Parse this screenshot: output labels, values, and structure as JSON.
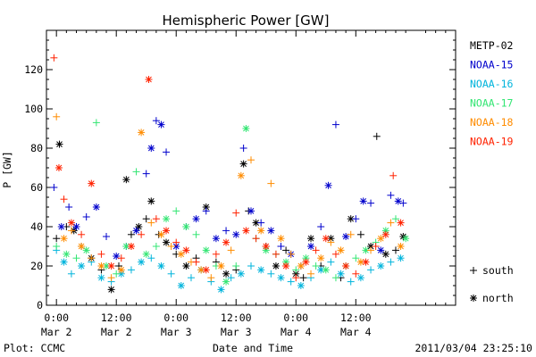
{
  "chart_data": {
    "type": "scatter",
    "title": "Hemispheric Power [GW]",
    "ylabel": "P [GW]",
    "xlabel": "Date and Time",
    "ylim": [
      0,
      140
    ],
    "xlim_hours": [
      -2,
      80
    ],
    "yticks": [
      0,
      20,
      40,
      60,
      80,
      100,
      120
    ],
    "xticks": [
      {
        "hour": 0,
        "time": "0:00",
        "date": "Mar 2"
      },
      {
        "hour": 12,
        "time": "12:00",
        "date": "Mar 2"
      },
      {
        "hour": 24,
        "time": "0:00",
        "date": "Mar 3"
      },
      {
        "hour": 36,
        "time": "12:00",
        "date": "Mar 3"
      },
      {
        "hour": 48,
        "time": "0:00",
        "date": "Mar 4"
      },
      {
        "hour": 60,
        "time": "12:00",
        "date": "Mar 4"
      }
    ],
    "x_unit": "hours from 2011-03-02 00:00",
    "grid": false,
    "legend_position": "right",
    "marker_legend": [
      {
        "symbol": "+",
        "label": "south"
      },
      {
        "symbol": "*",
        "label": "north"
      }
    ],
    "series": [
      {
        "name": "METP-02",
        "color": "#000000",
        "points": [
          [
            0,
            34
          ],
          [
            0.6,
            82
          ],
          [
            2,
            40
          ],
          [
            3.5,
            38
          ],
          [
            5,
            30
          ],
          [
            7,
            24
          ],
          [
            9,
            18
          ],
          [
            11,
            8
          ],
          [
            12.5,
            20
          ],
          [
            14,
            64
          ],
          [
            15,
            36
          ],
          [
            16.5,
            40
          ],
          [
            18,
            44
          ],
          [
            19,
            53
          ],
          [
            20.5,
            36
          ],
          [
            22,
            32
          ],
          [
            24,
            26
          ],
          [
            26,
            20
          ],
          [
            28,
            24
          ],
          [
            30,
            50
          ],
          [
            32,
            22
          ],
          [
            34,
            16
          ],
          [
            36,
            18
          ],
          [
            37.5,
            72
          ],
          [
            38.5,
            48
          ],
          [
            40,
            42
          ],
          [
            42,
            30
          ],
          [
            44,
            20
          ],
          [
            46,
            28
          ],
          [
            48,
            16
          ],
          [
            49.5,
            14
          ],
          [
            51,
            34
          ],
          [
            53,
            20
          ],
          [
            55,
            34
          ],
          [
            57,
            14
          ],
          [
            59,
            44
          ],
          [
            61,
            36
          ],
          [
            63,
            30
          ],
          [
            64.2,
            86
          ],
          [
            66,
            26
          ],
          [
            68,
            28
          ],
          [
            69.5,
            35
          ]
        ]
      },
      {
        "name": "NOAA-15",
        "color": "#0000cc",
        "points": [
          [
            -0.5,
            60
          ],
          [
            1,
            40
          ],
          [
            2.5,
            50
          ],
          [
            4,
            40
          ],
          [
            6,
            45
          ],
          [
            8,
            50
          ],
          [
            10,
            35
          ],
          [
            12,
            25
          ],
          [
            14,
            30
          ],
          [
            16,
            38
          ],
          [
            18,
            67
          ],
          [
            19,
            80
          ],
          [
            20,
            94
          ],
          [
            21,
            92
          ],
          [
            22,
            78
          ],
          [
            24,
            30
          ],
          [
            26,
            40
          ],
          [
            28,
            44
          ],
          [
            30,
            48
          ],
          [
            32,
            34
          ],
          [
            34,
            38
          ],
          [
            36,
            36
          ],
          [
            37.5,
            80
          ],
          [
            39,
            48
          ],
          [
            41,
            42
          ],
          [
            43,
            38
          ],
          [
            45,
            30
          ],
          [
            47,
            26
          ],
          [
            49,
            20
          ],
          [
            51,
            30
          ],
          [
            53,
            40
          ],
          [
            54.5,
            61
          ],
          [
            56,
            92
          ],
          [
            58,
            35
          ],
          [
            60,
            44
          ],
          [
            61.5,
            53
          ],
          [
            63,
            52
          ],
          [
            65,
            28
          ],
          [
            67,
            56
          ],
          [
            68.5,
            53
          ],
          [
            69.5,
            52
          ]
        ]
      },
      {
        "name": "NOAA-16",
        "color": "#00b4dc",
        "points": [
          [
            0,
            28
          ],
          [
            1.5,
            22
          ],
          [
            3,
            16
          ],
          [
            5,
            20
          ],
          [
            7,
            22
          ],
          [
            9,
            14
          ],
          [
            11,
            12
          ],
          [
            13,
            16
          ],
          [
            15,
            18
          ],
          [
            17,
            22
          ],
          [
            19,
            24
          ],
          [
            21,
            20
          ],
          [
            23,
            16
          ],
          [
            25,
            10
          ],
          [
            27,
            14
          ],
          [
            29,
            18
          ],
          [
            31,
            12
          ],
          [
            33,
            8
          ],
          [
            35,
            14
          ],
          [
            37,
            16
          ],
          [
            39,
            20
          ],
          [
            41,
            18
          ],
          [
            43,
            16
          ],
          [
            45,
            14
          ],
          [
            47,
            12
          ],
          [
            49,
            10
          ],
          [
            51,
            14
          ],
          [
            53,
            18
          ],
          [
            55,
            22
          ],
          [
            57,
            16
          ],
          [
            59,
            12
          ],
          [
            61,
            14
          ],
          [
            63,
            18
          ],
          [
            65,
            20
          ],
          [
            67,
            22
          ],
          [
            69,
            24
          ]
        ]
      },
      {
        "name": "NOAA-17",
        "color": "#33e673",
        "points": [
          [
            0,
            30
          ],
          [
            2,
            26
          ],
          [
            4,
            24
          ],
          [
            6,
            28
          ],
          [
            8,
            93
          ],
          [
            10,
            20
          ],
          [
            12,
            16
          ],
          [
            14,
            30
          ],
          [
            16,
            68
          ],
          [
            18,
            26
          ],
          [
            20,
            30
          ],
          [
            22,
            44
          ],
          [
            24,
            48
          ],
          [
            26,
            40
          ],
          [
            28,
            36
          ],
          [
            30,
            28
          ],
          [
            32,
            20
          ],
          [
            34,
            12
          ],
          [
            36,
            20
          ],
          [
            38,
            90
          ],
          [
            40,
            34
          ],
          [
            42,
            28
          ],
          [
            44,
            26
          ],
          [
            46,
            22
          ],
          [
            48,
            18
          ],
          [
            50,
            24
          ],
          [
            52,
            20
          ],
          [
            54,
            18
          ],
          [
            56,
            14
          ],
          [
            58,
            20
          ],
          [
            60,
            24
          ],
          [
            62,
            28
          ],
          [
            64,
            32
          ],
          [
            66,
            38
          ],
          [
            68,
            44
          ],
          [
            70,
            34
          ]
        ]
      },
      {
        "name": "NOAA-18",
        "color": "#ff8c00",
        "points": [
          [
            0,
            96
          ],
          [
            1.5,
            34
          ],
          [
            3,
            38
          ],
          [
            5,
            30
          ],
          [
            7,
            24
          ],
          [
            9,
            20
          ],
          [
            11,
            14
          ],
          [
            13,
            18
          ],
          [
            15,
            30
          ],
          [
            17,
            88
          ],
          [
            19,
            42
          ],
          [
            21,
            36
          ],
          [
            23,
            30
          ],
          [
            25,
            26
          ],
          [
            27,
            22
          ],
          [
            29,
            18
          ],
          [
            31,
            14
          ],
          [
            33,
            20
          ],
          [
            35,
            28
          ],
          [
            37,
            66
          ],
          [
            39,
            74
          ],
          [
            41,
            38
          ],
          [
            43,
            62
          ],
          [
            45,
            34
          ],
          [
            47,
            26
          ],
          [
            49,
            20
          ],
          [
            51,
            16
          ],
          [
            53,
            24
          ],
          [
            55,
            32
          ],
          [
            57,
            28
          ],
          [
            59,
            36
          ],
          [
            61,
            22
          ],
          [
            63,
            28
          ],
          [
            65,
            34
          ],
          [
            67,
            42
          ],
          [
            69,
            30
          ]
        ]
      },
      {
        "name": "NOAA-19",
        "color": "#ff2200",
        "points": [
          [
            -0.5,
            126
          ],
          [
            0.5,
            70
          ],
          [
            1.5,
            54
          ],
          [
            3,
            42
          ],
          [
            5,
            36
          ],
          [
            7,
            62
          ],
          [
            9,
            26
          ],
          [
            11,
            20
          ],
          [
            13,
            24
          ],
          [
            15,
            30
          ],
          [
            17,
            36
          ],
          [
            18.5,
            115
          ],
          [
            20,
            44
          ],
          [
            22,
            38
          ],
          [
            24,
            32
          ],
          [
            26,
            28
          ],
          [
            28,
            22
          ],
          [
            30,
            18
          ],
          [
            32,
            26
          ],
          [
            34,
            32
          ],
          [
            36,
            47
          ],
          [
            38,
            38
          ],
          [
            40,
            34
          ],
          [
            42,
            30
          ],
          [
            44,
            26
          ],
          [
            46,
            20
          ],
          [
            48,
            14
          ],
          [
            50,
            22
          ],
          [
            52,
            28
          ],
          [
            54,
            34
          ],
          [
            56,
            26
          ],
          [
            58,
            20
          ],
          [
            60,
            16
          ],
          [
            62,
            22
          ],
          [
            64,
            30
          ],
          [
            66,
            36
          ],
          [
            67.5,
            66
          ],
          [
            69,
            42
          ]
        ]
      }
    ]
  },
  "footer": {
    "plot_label": "Plot: CCMC",
    "timestamp": "2011/03/04 23:25:10"
  }
}
